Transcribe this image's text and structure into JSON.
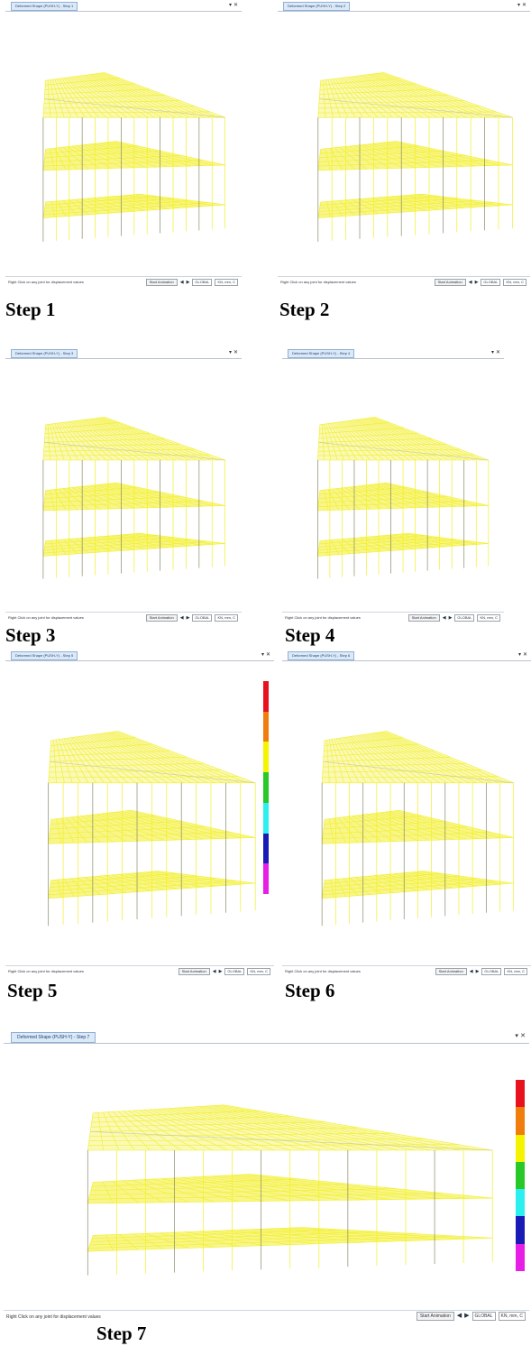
{
  "steps": [
    {
      "tab_title": "Deformed Shape (PUSH-Y) - Step 1",
      "caption": "Step 1",
      "status": "Right Click on any joint for displacement values",
      "controls": {
        "animate_label": "Start Animation",
        "coord_system": "GLOBAL",
        "units": "KN, mm, C"
      },
      "legend_visible": false
    },
    {
      "tab_title": "Deformed Shape (PUSH-Y) - Step 2",
      "caption": "Step 2",
      "status": "Right Click on any joint for displacement values",
      "controls": {
        "animate_label": "Start Animation",
        "coord_system": "GLOBAL",
        "units": "KN, mm, C"
      },
      "legend_visible": false
    },
    {
      "tab_title": "Deformed Shape (PUSH-Y) - Step 3",
      "caption": "Step 3",
      "status": "Right Click on any joint for displacement values",
      "controls": {
        "animate_label": "Start Animation",
        "coord_system": "GLOBAL",
        "units": "KN, mm, C"
      },
      "legend_visible": false
    },
    {
      "tab_title": "Deformed Shape (PUSH-Y) - Step 4",
      "caption": "Step 4",
      "status": "Right Click on any joint for displacement values",
      "controls": {
        "animate_label": "Start Animation",
        "coord_system": "GLOBAL",
        "units": "KN, mm, C"
      },
      "legend_visible": false
    },
    {
      "tab_title": "Deformed Shape (PUSH-Y) - Step 5",
      "caption": "Step 5",
      "status": "Right Click on any joint for displacement values",
      "controls": {
        "animate_label": "Start Animation",
        "coord_system": "GLOBAL",
        "units": "KN, mm, C"
      },
      "legend_visible": true
    },
    {
      "tab_title": "Deformed Shape (PUSH-Y) - Step 6",
      "caption": "Step 6",
      "status": "Right Click on any joint for displacement values",
      "controls": {
        "animate_label": "Start Animation",
        "coord_system": "GLOBAL",
        "units": "KN, mm, C"
      },
      "legend_visible": false
    },
    {
      "tab_title": "Deformed Shape (PUSH-Y) - Step 7",
      "caption": "Step 7",
      "status": "Right Click on any joint for displacement values",
      "controls": {
        "animate_label": "Start Animation",
        "coord_system": "GLOBAL",
        "units": "KN, mm, C"
      },
      "legend_visible": true
    }
  ],
  "window_controls": {
    "dropdown_icon": "chevron-down-icon",
    "close_icon": "close-icon",
    "close_glyph": "▾ ✕"
  },
  "legend_colors": [
    "#e8121e",
    "#f07d0c",
    "#f4f400",
    "#28c828",
    "#2cf0f0",
    "#1a1ab4",
    "#e61ee6"
  ],
  "icons": {
    "prev": "arrow-left-icon",
    "next": "arrow-right-icon"
  },
  "model_color": "#f2ef2a"
}
